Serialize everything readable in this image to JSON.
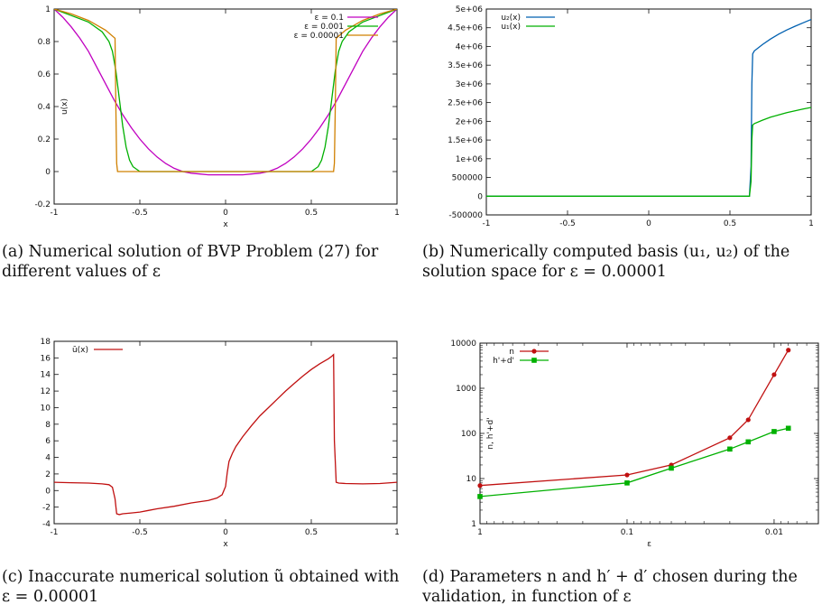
{
  "captions": {
    "a": "(a) Numerical solution of BVP Problem (27) for different values of ε",
    "b": "(b) Numerically computed basis (u₁, u₂) of the solution space for ε = 0.00001",
    "c": "(c) Inaccurate numerical solution ũ obtained with ε = 0.00001",
    "d": "(d) Parameters n and h′ + d′ chosen during the validation, in function of ε"
  },
  "chart_data": [
    {
      "id": "a",
      "type": "line",
      "xlabel": "x",
      "ylabel": "u(x)",
      "xlim": [
        -1,
        1
      ],
      "ylim": [
        -0.2,
        1
      ],
      "xticks": [
        "-1",
        "-0.5",
        "0",
        "0.5",
        "1"
      ],
      "yticks": [
        "-0.2",
        "0",
        "0.2",
        "0.4",
        "0.6",
        "0.8",
        "1"
      ],
      "legend_position": "top-right",
      "series": [
        {
          "name": "ε = 0.1",
          "color": "#c000c0",
          "x": [
            -1,
            -0.95,
            -0.9,
            -0.85,
            -0.8,
            -0.75,
            -0.7,
            -0.65,
            -0.6,
            -0.55,
            -0.5,
            -0.45,
            -0.4,
            -0.35,
            -0.3,
            -0.25,
            -0.2,
            -0.15,
            -0.1,
            -0.05,
            0,
            0.05,
            0.1,
            0.15,
            0.2,
            0.25,
            0.3,
            0.35,
            0.4,
            0.45,
            0.5,
            0.55,
            0.6,
            0.65,
            0.7,
            0.75,
            0.8,
            0.85,
            0.9,
            0.95,
            1
          ],
          "y": [
            1,
            0.95,
            0.89,
            0.82,
            0.74,
            0.64,
            0.54,
            0.44,
            0.35,
            0.27,
            0.2,
            0.14,
            0.09,
            0.05,
            0.02,
            0.0,
            -0.01,
            -0.015,
            -0.02,
            -0.02,
            -0.02,
            -0.02,
            -0.02,
            -0.015,
            -0.01,
            0.0,
            0.02,
            0.05,
            0.09,
            0.14,
            0.2,
            0.27,
            0.35,
            0.44,
            0.54,
            0.64,
            0.74,
            0.82,
            0.89,
            0.95,
            1
          ]
        },
        {
          "name": "ε = 0.001",
          "color": "#00b000",
          "x": [
            -1,
            -0.9,
            -0.8,
            -0.72,
            -0.68,
            -0.66,
            -0.64,
            -0.62,
            -0.6,
            -0.58,
            -0.56,
            -0.54,
            -0.5,
            -0.4,
            0,
            0.4,
            0.5,
            0.54,
            0.56,
            0.58,
            0.6,
            0.62,
            0.64,
            0.66,
            0.68,
            0.72,
            0.8,
            0.9,
            1
          ],
          "y": [
            1,
            0.96,
            0.92,
            0.86,
            0.8,
            0.74,
            0.62,
            0.45,
            0.28,
            0.15,
            0.07,
            0.03,
            0.0,
            0,
            0,
            0,
            0.0,
            0.03,
            0.07,
            0.15,
            0.28,
            0.45,
            0.62,
            0.74,
            0.8,
            0.86,
            0.92,
            0.96,
            1
          ]
        },
        {
          "name": "ε = 0.00001",
          "color": "#d08000",
          "x": [
            -1,
            -0.9,
            -0.8,
            -0.7,
            -0.645,
            -0.64,
            -0.635,
            -0.63,
            0,
            0.63,
            0.635,
            0.64,
            0.645,
            0.7,
            0.8,
            0.9,
            1
          ],
          "y": [
            1,
            0.97,
            0.93,
            0.87,
            0.82,
            0.4,
            0.05,
            0,
            0,
            0,
            0.05,
            0.4,
            0.82,
            0.87,
            0.93,
            0.97,
            1
          ]
        }
      ]
    },
    {
      "id": "b",
      "type": "line",
      "xlabel": "",
      "ylabel": "",
      "xlim": [
        -1,
        1
      ],
      "ylim": [
        -500000,
        5000000
      ],
      "xticks": [
        "-1",
        "-0.5",
        "0",
        "0.5",
        "1"
      ],
      "yticks": [
        "-500000",
        "0",
        "500000",
        "1e+06",
        "1.5e+06",
        "2e+06",
        "2.5e+06",
        "3e+06",
        "3.5e+06",
        "4e+06",
        "4.5e+06",
        "5e+06"
      ],
      "legend_position": "top-left",
      "series": [
        {
          "name": "u₂(x)",
          "color": "#0060b0",
          "x": [
            -1,
            0.62,
            0.63,
            0.635,
            0.64,
            0.65,
            0.7,
            0.75,
            0.8,
            0.85,
            0.9,
            0.95,
            1
          ],
          "y": [
            0,
            0,
            800000,
            3000000,
            3800000,
            3880000,
            4050000,
            4200000,
            4330000,
            4440000,
            4540000,
            4630000,
            4720000
          ]
        },
        {
          "name": "u₁(x)",
          "color": "#00b000",
          "x": [
            -1,
            0.62,
            0.63,
            0.635,
            0.64,
            0.65,
            0.7,
            0.75,
            0.8,
            0.85,
            0.9,
            0.95,
            1
          ],
          "y": [
            0,
            0,
            400000,
            1500000,
            1900000,
            1940000,
            2030000,
            2110000,
            2170000,
            2230000,
            2280000,
            2330000,
            2370000
          ]
        }
      ]
    },
    {
      "id": "c",
      "type": "line",
      "xlabel": "x",
      "ylabel": "",
      "xlim": [
        -1,
        1
      ],
      "ylim": [
        -4,
        18
      ],
      "xticks": [
        "-1",
        "-0.5",
        "0",
        "0.5",
        "1"
      ],
      "yticks": [
        "-4",
        "-2",
        "0",
        "2",
        "4",
        "6",
        "8",
        "10",
        "12",
        "14",
        "16",
        "18"
      ],
      "legend_position": "top-left",
      "series": [
        {
          "name": "ū(x)",
          "color": "#c01010",
          "x": [
            -1,
            -0.9,
            -0.8,
            -0.72,
            -0.68,
            -0.66,
            -0.645,
            -0.635,
            -0.62,
            -0.6,
            -0.55,
            -0.5,
            -0.45,
            -0.4,
            -0.3,
            -0.2,
            -0.1,
            -0.05,
            -0.02,
            0,
            0.01,
            0.02,
            0.04,
            0.06,
            0.1,
            0.15,
            0.2,
            0.25,
            0.3,
            0.35,
            0.4,
            0.45,
            0.5,
            0.55,
            0.6,
            0.62,
            0.63,
            0.635,
            0.645,
            0.66,
            0.7,
            0.8,
            0.9,
            1
          ],
          "y": [
            1,
            0.95,
            0.9,
            0.8,
            0.7,
            0.4,
            -1,
            -2.8,
            -2.9,
            -2.8,
            -2.7,
            -2.6,
            -2.4,
            -2.2,
            -1.9,
            -1.5,
            -1.2,
            -0.9,
            -0.5,
            0.5,
            2.2,
            3.5,
            4.5,
            5.3,
            6.5,
            7.8,
            9.0,
            10.0,
            11.0,
            12.0,
            12.9,
            13.8,
            14.6,
            15.3,
            15.9,
            16.2,
            16.4,
            6,
            1,
            0.9,
            0.85,
            0.8,
            0.85,
            1
          ]
        }
      ]
    },
    {
      "id": "d",
      "type": "line",
      "log_x": true,
      "log_y": true,
      "x_reversed": true,
      "xlabel": "ε",
      "ylabel": "n, h'+d'",
      "xlim": [
        1,
        0.005
      ],
      "ylim": [
        1,
        10000
      ],
      "xticks": [
        "1",
        "0.1",
        "0.01"
      ],
      "yticks": [
        "1",
        "10",
        "100",
        "1000",
        "10000"
      ],
      "legend_position": "top-left",
      "series": [
        {
          "name": "n",
          "color": "#c01010",
          "marker": "circle",
          "x": [
            1,
            0.1,
            0.05,
            0.02,
            0.015,
            0.01,
            0.008
          ],
          "y": [
            7,
            12,
            20,
            80,
            200,
            2000,
            7000
          ]
        },
        {
          "name": "h'+d'",
          "color": "#00b000",
          "marker": "square",
          "x": [
            1,
            0.1,
            0.05,
            0.02,
            0.015,
            0.01,
            0.008
          ],
          "y": [
            4,
            8,
            17,
            45,
            65,
            110,
            130
          ]
        }
      ]
    }
  ]
}
